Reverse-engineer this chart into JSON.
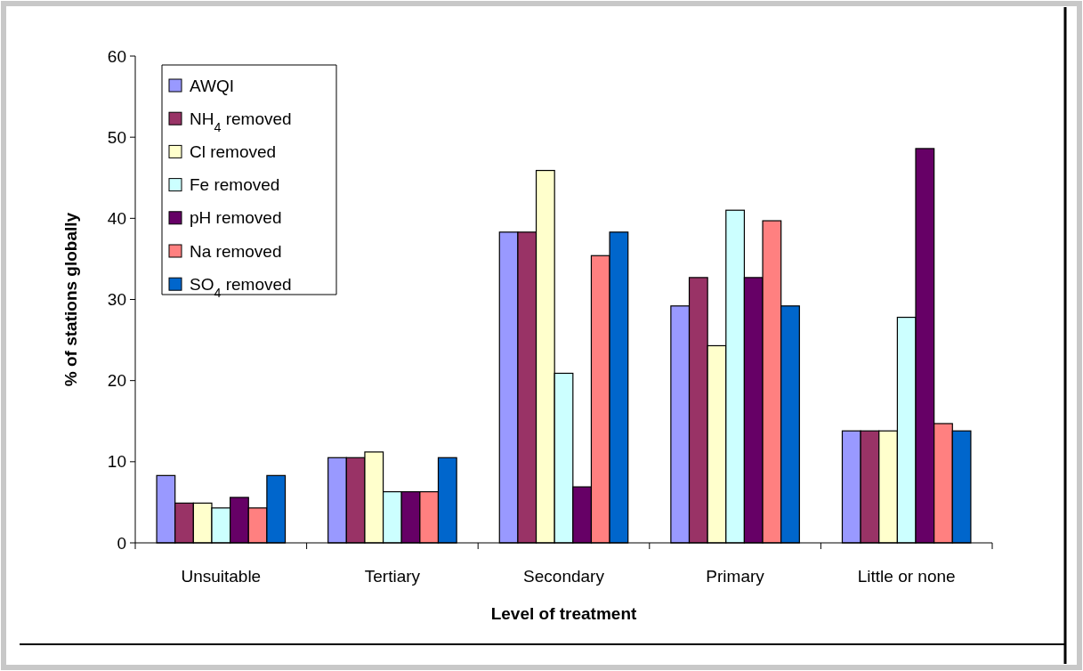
{
  "chart_data": {
    "type": "bar",
    "xlabel": "Level of treatment",
    "ylabel": "% of stations globally",
    "categories": [
      "Unsuitable",
      "Tertiary",
      "Secondary",
      "Primary",
      "Little or none"
    ],
    "series": [
      {
        "name": "AWQI",
        "color": "#9999ff",
        "values": [
          8.3,
          10.5,
          38.3,
          29.2,
          13.8
        ]
      },
      {
        "name": "NH$_{4}$ removed",
        "color": "#993366",
        "values": [
          4.9,
          10.5,
          38.3,
          32.7,
          13.8
        ]
      },
      {
        "name": "Cl removed",
        "color": "#ffffcc",
        "values": [
          4.9,
          11.2,
          45.9,
          24.3,
          13.8
        ]
      },
      {
        "name": "Fe removed",
        "color": "#ccffff",
        "values": [
          4.3,
          6.3,
          20.9,
          41.0,
          27.8
        ]
      },
      {
        "name": "pH removed",
        "color": "#660066",
        "values": [
          5.6,
          6.3,
          6.9,
          32.7,
          48.6
        ]
      },
      {
        "name": "Na removed",
        "color": "#ff8080",
        "values": [
          4.3,
          6.3,
          35.4,
          39.7,
          14.7
        ]
      },
      {
        "name": "SO$_{4}$ removed",
        "color": "#0066cc",
        "values": [
          8.3,
          10.5,
          38.3,
          29.2,
          13.8
        ]
      }
    ],
    "ylim": [
      0,
      60
    ],
    "yticks": [
      0,
      10,
      20,
      30,
      40,
      50,
      60
    ],
    "legend": "top left"
  }
}
